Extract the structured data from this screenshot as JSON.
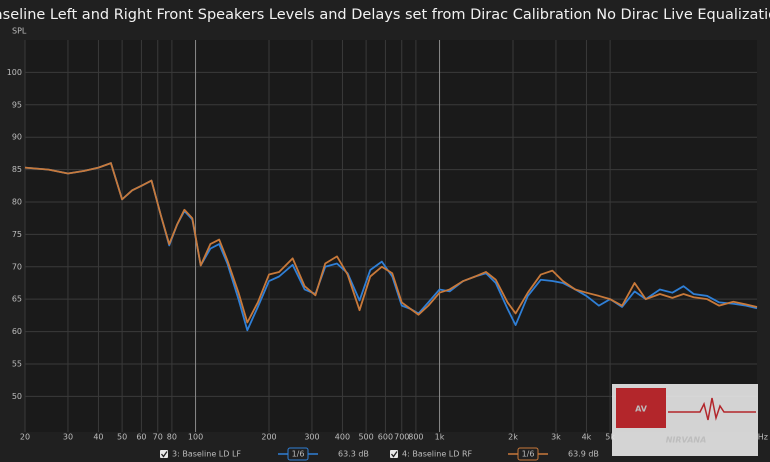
{
  "chart_data": {
    "type": "line",
    "title": "Baseline Left and Right Front Speakers Levels and Delays set from Dirac Calibration No Dirac Live Equalization",
    "ylabel": "SPL",
    "xlabel": "Hz",
    "xscale": "log",
    "grid": true,
    "xlim": [
      20,
      20000
    ],
    "ylim": [
      44.5,
      105
    ],
    "yticks": [
      50,
      55,
      60,
      65,
      70,
      75,
      80,
      85,
      90,
      95,
      100
    ],
    "xticks": [
      20,
      30,
      40,
      50,
      60,
      70,
      80,
      100,
      200,
      300,
      400,
      500,
      600,
      700,
      800,
      {
        "value": 1000,
        "label": "1k"
      },
      {
        "value": 2000,
        "label": "2k"
      },
      {
        "value": 3000,
        "label": "3k"
      },
      {
        "value": 4000,
        "label": "4k"
      },
      {
        "value": 5000,
        "label": "5k"
      }
    ],
    "x": [
      20,
      25,
      30,
      35,
      40,
      45,
      50,
      55,
      60,
      66,
      72,
      78,
      84,
      90,
      97,
      105,
      115,
      125,
      135,
      150,
      163,
      180,
      200,
      220,
      250,
      280,
      310,
      340,
      380,
      420,
      470,
      520,
      580,
      640,
      700,
      760,
      820,
      900,
      1000,
      1100,
      1250,
      1400,
      1550,
      1700,
      1900,
      2050,
      2300,
      2600,
      2900,
      3200,
      3600,
      4000,
      4500,
      5000,
      5600,
      6300,
      7000,
      8000,
      9000,
      10000,
      11000,
      12500,
      14000,
      16000,
      18000,
      20000
    ],
    "series": [
      {
        "name": "3: Baseline LD LF",
        "color": "#2f7fd6",
        "smoothing": "1/6",
        "level": "63.3 dB",
        "values": [
          85.3,
          85.0,
          84.4,
          84.8,
          85.3,
          86.0,
          80.4,
          81.8,
          82.5,
          83.3,
          78.0,
          73.3,
          76.5,
          78.6,
          77.3,
          70.2,
          72.8,
          73.5,
          70.5,
          65.0,
          60.2,
          63.8,
          67.8,
          68.5,
          70.3,
          66.5,
          65.8,
          70.0,
          70.5,
          69.0,
          64.8,
          69.5,
          70.8,
          68.5,
          64.0,
          63.5,
          62.8,
          64.5,
          66.5,
          66.2,
          67.8,
          68.5,
          69.0,
          67.5,
          63.5,
          61.0,
          65.5,
          68.0,
          67.8,
          67.5,
          66.5,
          65.5,
          64.0,
          65.0,
          63.8,
          66.2,
          65.0,
          66.5,
          66.0,
          67.0,
          65.8,
          65.5,
          64.5,
          64.3,
          64.0,
          63.6
        ]
      },
      {
        "name": "4: Baseline LD RF",
        "color": "#c8793a",
        "smoothing": "1/6",
        "level": "63.9 dB",
        "values": [
          85.3,
          85.0,
          84.4,
          84.8,
          85.3,
          86.0,
          80.4,
          81.8,
          82.5,
          83.3,
          78.0,
          73.5,
          76.5,
          78.8,
          77.5,
          70.2,
          73.5,
          74.2,
          71.0,
          66.0,
          61.4,
          64.5,
          68.8,
          69.2,
          71.3,
          67.0,
          65.6,
          70.5,
          71.6,
          68.8,
          63.3,
          68.5,
          70.0,
          69.0,
          64.5,
          63.5,
          62.6,
          64.0,
          66.0,
          66.5,
          67.8,
          68.5,
          69.2,
          68.0,
          64.5,
          62.8,
          66.0,
          68.8,
          69.4,
          67.8,
          66.5,
          66.0,
          65.5,
          65.0,
          64.0,
          67.5,
          65.0,
          65.8,
          65.2,
          65.8,
          65.3,
          65.0,
          64.0,
          64.6,
          64.2,
          63.8
        ]
      }
    ],
    "logo": [
      "AV",
      "NIRVANA"
    ]
  }
}
